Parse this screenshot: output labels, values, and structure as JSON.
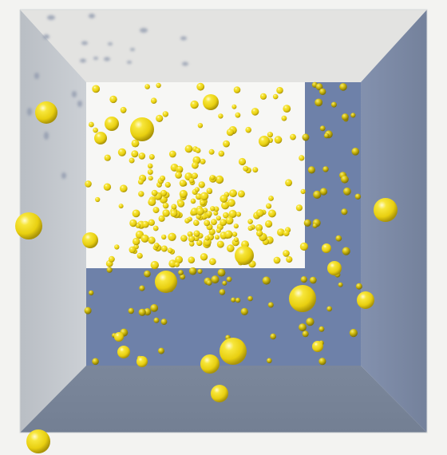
{
  "scene": {
    "name": "particle-box-simulation",
    "colors": {
      "background": "#f3f3f1",
      "ceiling": "#e4e4e2",
      "left_wall": "#c3c7cc",
      "right_wall": "#7d8aa5",
      "floor": "#7a8699",
      "back_wall_light": "#f6f6f4",
      "back_wall_blue": "#6f82aa",
      "ball_main": "#f2dd1a",
      "ball_highlight": "#fff7a8",
      "ball_shadow": "#8d7f07",
      "ball_shadow_on_wall": "#7f8ca8"
    },
    "particle_seed": 1977,
    "far_particle_count": 320,
    "large_spheres_note": "visible",
    "shadow_blobs_note": "visible"
  }
}
